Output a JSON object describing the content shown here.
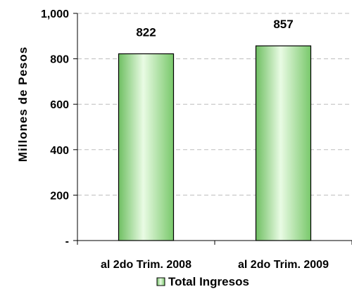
{
  "chart_data": {
    "type": "bar",
    "categories": [
      "al 2do Trim. 2008",
      "al 2do Trim. 2009"
    ],
    "series": [
      {
        "name": "Total Ingresos",
        "values": [
          822,
          857
        ]
      }
    ],
    "data_labels": [
      "822",
      "857"
    ],
    "ylabel": "Millones de Pesos",
    "xlabel": "",
    "ylim": [
      0,
      1000
    ],
    "yticks": [
      0,
      200,
      400,
      600,
      800,
      1000
    ],
    "ytick_labels": [
      "-",
      "200",
      "400",
      "600",
      "800",
      "1,000"
    ],
    "grid": true,
    "legend_position": "bottom",
    "bar_color": "#a6e59a",
    "bar_edge_color": "#000000"
  }
}
